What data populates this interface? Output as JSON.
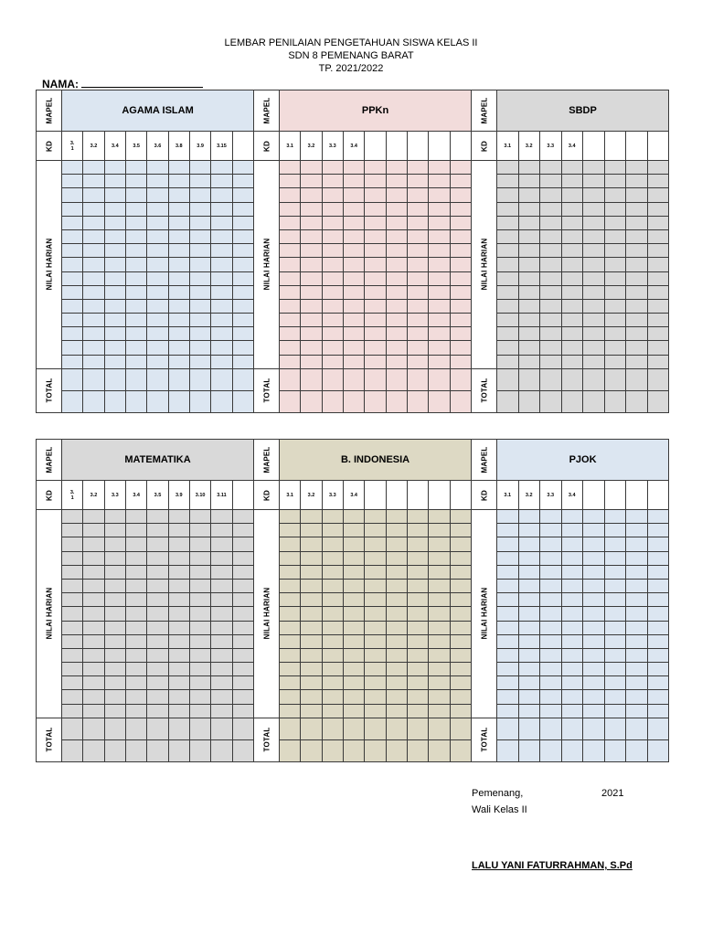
{
  "header": {
    "line1": "LEMBAR PENILAIAN PENGETAHUAN SISWA KELAS II",
    "line2": "SDN 8 PEMENANG BARAT",
    "line3": "TP. 2021/2022"
  },
  "nama_label": "NAMA:",
  "labels": {
    "mapel": "MAPEL",
    "kd": "KD",
    "nilai": "NILAI HARIAN",
    "total": "TOTAL"
  },
  "subjects": [
    {
      "name": "AGAMA ISLAM",
      "color": "#dce6f1",
      "kd": [
        "3.\n1",
        "3.2",
        "3.4",
        "3.5",
        "3.6",
        "3.8",
        "3.9",
        "3.15",
        ""
      ]
    },
    {
      "name": "PPKn",
      "color": "#f2dcdb",
      "kd": [
        "3.1",
        "3.2",
        "3.3",
        "3.4",
        "",
        "",
        "",
        "",
        ""
      ]
    },
    {
      "name": "SBDP",
      "color": "#d9d9d9",
      "kd": [
        "3.1",
        "3.2",
        "3.3",
        "3.4",
        "",
        "",
        "",
        ""
      ]
    },
    {
      "name": "MATEMATIKA",
      "color": "#d9d9d9",
      "kd": [
        "3.\n1",
        "3.2",
        "3.3",
        "3.4",
        "3.5",
        "3.9",
        "3.10",
        "3.11",
        ""
      ]
    },
    {
      "name": "B. INDONESIA",
      "color": "#ddd9c4",
      "kd": [
        "3.1",
        "3.2",
        "3.3",
        "3.4",
        "",
        "",
        "",
        "",
        ""
      ]
    },
    {
      "name": "PJOK",
      "color": "#dce6f1",
      "kd": [
        "3.1",
        "3.2",
        "3.3",
        "3.4",
        "",
        "",
        "",
        ""
      ]
    }
  ],
  "signature": {
    "place": "Pemenang,",
    "year": "2021",
    "role": "Wali Kelas II",
    "name": "LALU YANI FATURRAHMAN, S.Pd"
  }
}
